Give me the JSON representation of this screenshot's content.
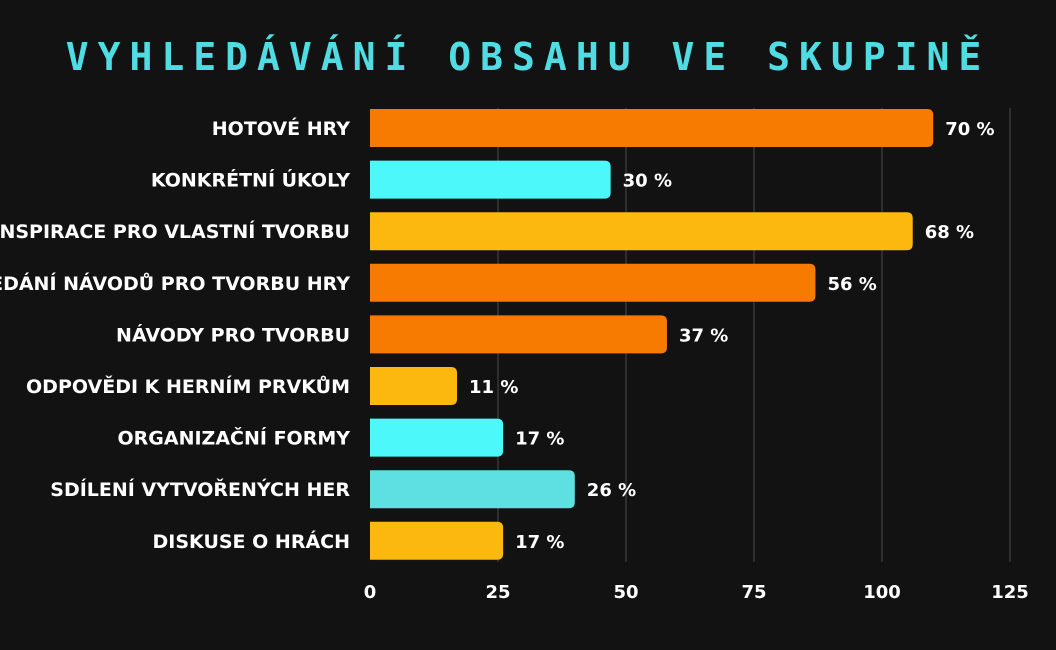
{
  "chart_data": {
    "type": "bar",
    "orientation": "horizontal",
    "title": "VYHLEDÁVÁNÍ OBSAHU VE SKUPINĚ",
    "categories": [
      "HOTOVÉ HRY",
      "KONKRÉTNÍ ÚKOLY",
      "INSPIRACE PRO VLASTNÍ TVORBU",
      "HLEDÁNÍ NÁVODŮ PRO TVORBU HRY",
      "NÁVODY PRO TVORBU",
      "ODPOVĚDI K HERNÍM PRVKŮM",
      "ORGANIZAČNÍ FORMY",
      "SDÍLENÍ VYTVOŘENÝCH HER",
      "DISKUSE O HRÁCH"
    ],
    "values": [
      110,
      47,
      106,
      87,
      58,
      17,
      26,
      40,
      26
    ],
    "value_labels": [
      "70 %",
      "30 %",
      "68 %",
      "56 %",
      "37 %",
      "11 %",
      "17 %",
      "26 %",
      "17 %"
    ],
    "bar_colors": [
      "#f77b00",
      "#4df8fb",
      "#fcb80f",
      "#f77b00",
      "#f77b00",
      "#fcb80f",
      "#4df8fb",
      "#5ee0e2",
      "#fcb80f"
    ],
    "xlim": [
      0,
      125
    ],
    "xticks": [
      0,
      25,
      50,
      75,
      100,
      125
    ],
    "xtick_labels": [
      "0",
      "25",
      "50",
      "75",
      "100",
      "125"
    ],
    "grid": "vertical",
    "xlabel": "",
    "ylabel": ""
  },
  "colors": {
    "background": "#121212",
    "title": "#4fdde3",
    "text": "#ffffff",
    "grid": "#4a4a4a"
  }
}
